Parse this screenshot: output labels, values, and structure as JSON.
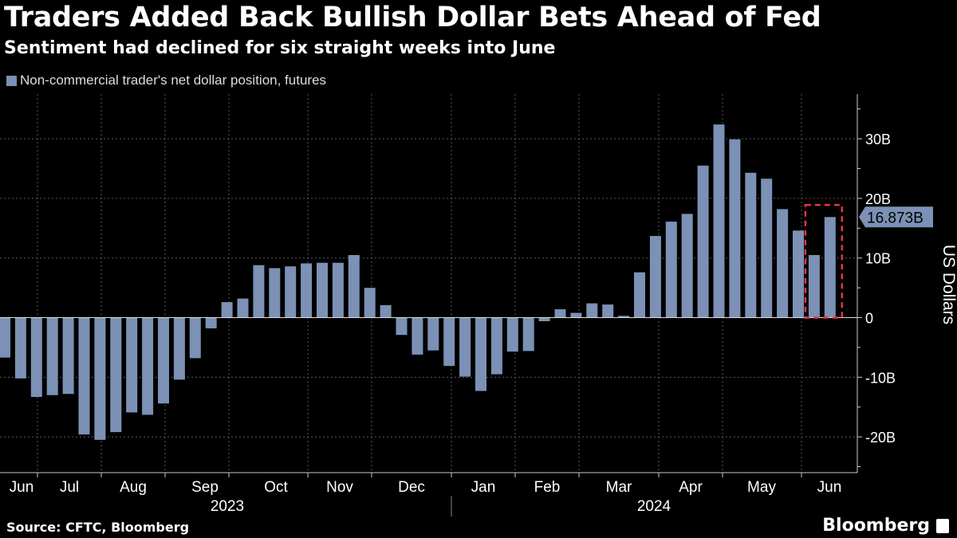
{
  "title": "Traders Added Back Bullish Dollar Bets Ahead of Fed",
  "subtitle": "Sentiment had declined for six straight weeks into June",
  "source": "Source: CFTC, Bloomberg",
  "brand": "Bloomberg",
  "colors": {
    "bar": "#7b91b5",
    "highlight": "#e8334a",
    "grid": "#5a5a5a",
    "background": "#000000"
  },
  "chart_data": {
    "type": "bar",
    "title": "Traders Added Back Bullish Dollar Bets Ahead of Fed",
    "legend": "Non-commercial trader's net dollar position, futures",
    "ylabel": "US Dollars",
    "ylim": [
      -26,
      37.5
    ],
    "yticks": [
      30,
      20,
      10,
      0,
      -10,
      -20
    ],
    "ytick_labels": [
      "30B",
      "20B",
      "10B",
      "0",
      "-10B",
      "-20B"
    ],
    "grid": true,
    "months": [
      "Jun",
      "Jul",
      "Aug",
      "Sep",
      "Oct",
      "Nov",
      "Dec",
      "Jan",
      "Feb",
      "Mar",
      "Apr",
      "May",
      "Jun"
    ],
    "years": [
      "2023",
      "2024"
    ],
    "values": [
      -6.7,
      -10.2,
      -13.3,
      -13.0,
      -12.8,
      -19.6,
      -20.5,
      -19.2,
      -15.9,
      -16.3,
      -14.4,
      -10.4,
      -6.8,
      -1.8,
      2.6,
      3.2,
      8.8,
      8.3,
      8.6,
      9.1,
      9.2,
      9.2,
      10.5,
      5.0,
      2.1,
      -2.9,
      -6.2,
      -5.5,
      -8.1,
      -9.9,
      -12.3,
      -9.5,
      -5.7,
      -5.6,
      -0.6,
      1.4,
      0.8,
      2.4,
      2.2,
      0.3,
      7.6,
      13.7,
      16.1,
      17.4,
      25.5,
      32.4,
      29.9,
      24.3,
      23.3,
      18.2,
      14.6,
      10.5,
      16.873
    ],
    "last_value_label": "16.873B",
    "annotation": "Dashed box highlighting the last two bars"
  }
}
